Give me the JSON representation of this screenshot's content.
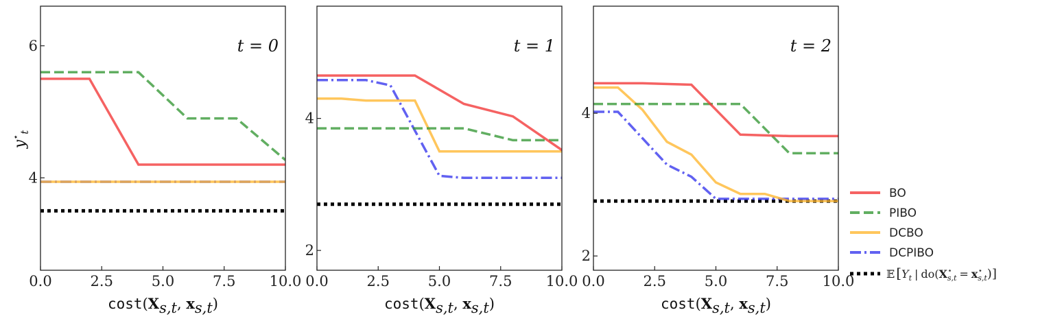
{
  "legend": {
    "placement": "outside-right-bottom",
    "entries": [
      {
        "label": "BO",
        "color": "#f23b3b",
        "dash": "solid"
      },
      {
        "label": "PIBO",
        "color": "#3a9a3a",
        "dash": "dashed"
      },
      {
        "label": "DCBO",
        "color": "#ffb833",
        "dash": "solid"
      },
      {
        "label": "DCPIBO",
        "color": "#3a3aee",
        "dash": "dashdot"
      },
      {
        "label": "E[Y_t | do(X*_{s,t} = x*_{s,t})]",
        "color": "#000000",
        "dash": "dotted"
      }
    ],
    "expectation_label": {
      "E": "𝔼",
      "open": "[",
      "Y": "Y",
      "t": "t",
      "bar": "|",
      "do": "do(",
      "X": "X",
      "star": "⋆",
      "st": "s,t",
      "eq": "=",
      "x": "x",
      "close": ")]"
    }
  },
  "axis_text": {
    "xlabel_prefix": "cost",
    "xlabel_X": "X",
    "xlabel_x": "x",
    "xlabel_sub": "s,t",
    "ylabel_y": "y",
    "ylabel_star": "⋆",
    "ylabel_sub": "t"
  },
  "chart_data": [
    {
      "type": "line",
      "annotation": "t = 0",
      "xlabel": "cost(X_{s,t}, x_{s,t})",
      "ylabel": "y*_t",
      "xlim": [
        0,
        10
      ],
      "ylim": [
        2.6,
        6.6
      ],
      "xticks": [
        "0.0",
        "2.5",
        "5.0",
        "7.5",
        "10.0"
      ],
      "yticks": [
        4,
        6
      ],
      "grid": false,
      "series": [
        {
          "name": "BO",
          "x": [
            0,
            2,
            4,
            10
          ],
          "y": [
            5.5,
            5.5,
            4.2,
            4.2
          ]
        },
        {
          "name": "PIBO",
          "x": [
            0,
            4,
            6,
            8,
            10
          ],
          "y": [
            5.6,
            5.6,
            4.9,
            4.9,
            4.27
          ]
        },
        {
          "name": "DCBO",
          "x": [
            0,
            10
          ],
          "y": [
            3.94,
            3.94
          ]
        },
        {
          "name": "DCPIBO",
          "x": [
            0,
            10
          ],
          "y": [
            3.94,
            3.94
          ]
        },
        {
          "name": "E[Y_t | do(X*_{s,t} = x*_{s,t})]",
          "x": [
            0,
            10
          ],
          "y": [
            3.5,
            3.5
          ]
        }
      ]
    },
    {
      "type": "line",
      "annotation": "t = 1",
      "xlabel": "cost(X_{s,t}, x_{s,t})",
      "ylabel": "",
      "xlim": [
        0,
        10
      ],
      "ylim": [
        1.7,
        5.7
      ],
      "xticks": [
        "0.0",
        "2.5",
        "5.0",
        "7.5",
        "10.0"
      ],
      "yticks": [
        2,
        4
      ],
      "grid": false,
      "series": [
        {
          "name": "BO",
          "x": [
            0,
            4,
            6,
            8,
            10
          ],
          "y": [
            4.65,
            4.65,
            4.22,
            4.03,
            3.52
          ]
        },
        {
          "name": "PIBO",
          "x": [
            0,
            6,
            8,
            10
          ],
          "y": [
            3.85,
            3.85,
            3.67,
            3.67
          ]
        },
        {
          "name": "DCBO",
          "x": [
            0,
            1,
            2,
            4,
            5,
            10
          ],
          "y": [
            4.3,
            4.3,
            4.27,
            4.27,
            3.5,
            3.5
          ]
        },
        {
          "name": "DCPIBO",
          "x": [
            0,
            2,
            3,
            5,
            6,
            10
          ],
          "y": [
            4.58,
            4.58,
            4.5,
            3.13,
            3.1,
            3.1
          ]
        },
        {
          "name": "E[Y_t | do(X*_{s,t} = x*_{s,t})]",
          "x": [
            0,
            10
          ],
          "y": [
            2.7,
            2.7
          ]
        }
      ]
    },
    {
      "type": "line",
      "annotation": "t = 2",
      "xlabel": "cost(X_{s,t}, x_{s,t})",
      "ylabel": "",
      "xlim": [
        0,
        10
      ],
      "ylim": [
        1.8,
        5.5
      ],
      "xticks": [
        "0.0",
        "2.5",
        "5.0",
        "7.5",
        "10.0"
      ],
      "yticks": [
        2,
        4
      ],
      "grid": false,
      "series": [
        {
          "name": "BO",
          "x": [
            0,
            2,
            4,
            6,
            8,
            10
          ],
          "y": [
            4.42,
            4.42,
            4.4,
            3.7,
            3.68,
            3.68
          ]
        },
        {
          "name": "PIBO",
          "x": [
            0,
            6,
            8,
            10
          ],
          "y": [
            4.13,
            4.13,
            3.44,
            3.44
          ]
        },
        {
          "name": "DCBO",
          "x": [
            0,
            1,
            2,
            3,
            4,
            5,
            6,
            7,
            8,
            10
          ],
          "y": [
            4.36,
            4.36,
            4.05,
            3.6,
            3.42,
            3.03,
            2.87,
            2.87,
            2.77,
            2.77
          ]
        },
        {
          "name": "DCPIBO",
          "x": [
            0,
            1,
            3,
            4,
            5,
            6,
            8,
            10
          ],
          "y": [
            4.02,
            4.02,
            3.28,
            3.11,
            2.8,
            2.8,
            2.8,
            2.8
          ]
        },
        {
          "name": "E[Y_t | do(X*_{s,t} = x*_{s,t})]",
          "x": [
            0,
            10
          ],
          "y": [
            2.77,
            2.77
          ]
        }
      ]
    }
  ]
}
